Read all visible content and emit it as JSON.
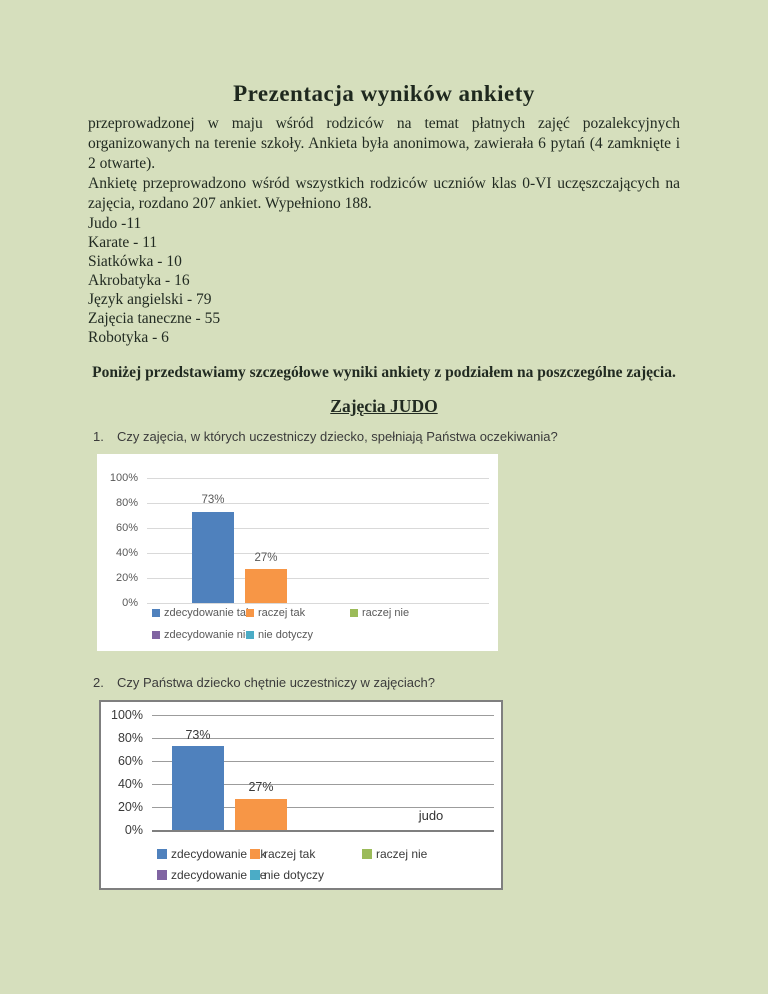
{
  "page": {
    "title": "Prezentacja wyników ankiety",
    "paragraphs": {
      "0": "przeprowadzonej w maju wśród rodziców na temat płatnych zajęć pozalekcyjnych organizowanych na terenie szkoły.  Ankieta była anonimowa, zawierała 6 pytań (4 zamknięte i 2 otwarte).",
      "1": "Ankietę przeprowadzono wśród wszystkich rodziców uczniów klas 0-VI uczęszczających na zajęcia, rozdano 207 ankiet. Wypełniono 188."
    },
    "tally_lines": {
      "0": "Judo -11",
      "1": "Karate - 11",
      "2": "Siatkówka  - 10",
      "3": "Akrobatyka - 16",
      "4": "Język angielski - 79",
      "5": "Zajęcia taneczne - 55",
      "6": "Robotyka - 6"
    },
    "intro_bold": "Poniżej przedstawiamy szczegółowe wyniki ankiety z podziałem na poszczególne zajęcia.",
    "section_heading": "Zajęcia JUDO",
    "questions": {
      "0": {
        "number": "1.",
        "text": "Czy zajęcia, w których uczestniczy dziecko, spełniają Państwa oczekiwania?"
      },
      "1": {
        "number": "2.",
        "text": "Czy Państwa dziecko chętnie uczestniczy w zajęciach?"
      }
    }
  },
  "colors": {
    "page_background": "#d6dfbd",
    "series_blue": "#4F81BD",
    "series_orange": "#F79646",
    "series_green": "#9BBB59",
    "series_purple": "#8064A2",
    "series_aqua": "#4BACC6"
  },
  "chart_data": [
    {
      "type": "bar",
      "question": "Czy zajęcia, w których uczestniczy dziecko, spełniają Państwa oczekiwania?",
      "categories": [
        "zdecydowanie tak",
        "raczej tak",
        "raczej nie",
        "zdecydowanie nie",
        "nie dotyczy"
      ],
      "values": [
        73,
        27,
        0,
        0,
        0
      ],
      "data_labels": [
        "73%",
        "27%"
      ],
      "series_colors": [
        "#4F81BD",
        "#F79646",
        "#9BBB59",
        "#8064A2",
        "#4BACC6"
      ],
      "ylim": [
        0,
        100
      ],
      "yticks": [
        "0%",
        "20%",
        "40%",
        "60%",
        "80%",
        "100%"
      ],
      "grid": true,
      "grid_color": "#d9d9d9",
      "axis_color": "#d9d9d9",
      "text_color": "#595959",
      "legend_position": "bottom",
      "category_label": ""
    },
    {
      "type": "bar",
      "question": "Czy Państwa dziecko chętnie uczestniczy w zajęciach?",
      "categories": [
        "zdecydowanie tak",
        "raczej tak",
        "raczej nie",
        "zdecydowanie nie",
        "nie dotyczy"
      ],
      "values": [
        73,
        27,
        0,
        0,
        0
      ],
      "data_labels": [
        "73%",
        "27%"
      ],
      "series_colors": [
        "#4F81BD",
        "#F79646",
        "#9BBB59",
        "#8064A2",
        "#4BACC6"
      ],
      "ylim": [
        0,
        100
      ],
      "yticks": [
        "0%",
        "20%",
        "40%",
        "60%",
        "80%",
        "100%"
      ],
      "grid": true,
      "grid_color": "#9c9c9c",
      "axis_color": "#7f7f7f",
      "text_color": "#3a3a3a",
      "legend_position": "bottom",
      "category_label": "judo"
    }
  ]
}
